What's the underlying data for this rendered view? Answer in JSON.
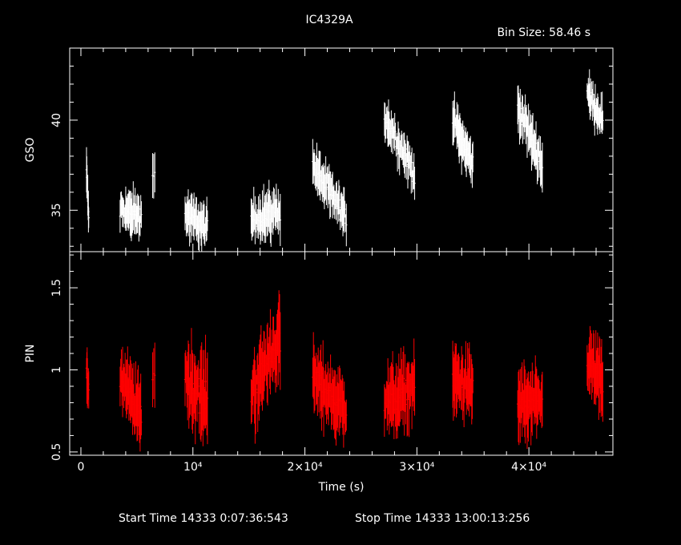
{
  "title": "IC4329A",
  "bin_size_label": "Bin Size: 58.46 s",
  "x_axis": {
    "label": "Time (s)",
    "ticks": [
      "0",
      "10⁴",
      "2×10⁴",
      "3×10⁴",
      "4×10⁴"
    ]
  },
  "footer": {
    "start_label": "Start Time 14333  0:07:36:543",
    "stop_label": "Stop Time 14333 13:00:13:256"
  },
  "colors": {
    "background": "#000000",
    "gso": "#ffffff",
    "pin": "#ff0000",
    "axes": "#ffffff"
  },
  "chart_data": [
    {
      "type": "scatter",
      "panel": "top",
      "ylabel": "GSO",
      "color": "#ffffff",
      "xlim": [
        -1000,
        47500
      ],
      "ylim": [
        32.7,
        44.0
      ],
      "y_ticks": [
        "35",
        "40"
      ],
      "segments": [
        {
          "x0": 500,
          "x1": 700,
          "y0": 37.2,
          "y1": 34.5,
          "n": 8,
          "spread": 1.2
        },
        {
          "x0": 3500,
          "x1": 5400,
          "y0": 35.0,
          "y1": 34.7,
          "n": 35,
          "spread": 1.3
        },
        {
          "x0": 6400,
          "x1": 6600,
          "y0": 37.0,
          "y1": 37.2,
          "n": 3,
          "spread": 1.2
        },
        {
          "x0": 9300,
          "x1": 11300,
          "y0": 34.8,
          "y1": 34.0,
          "n": 36,
          "spread": 1.3
        },
        {
          "x0": 15200,
          "x1": 17800,
          "y0": 34.5,
          "y1": 35.0,
          "n": 45,
          "spread": 1.4
        },
        {
          "x0": 20700,
          "x1": 23700,
          "y0": 37.5,
          "y1": 34.5,
          "n": 50,
          "spread": 1.3
        },
        {
          "x0": 27100,
          "x1": 29800,
          "y0": 40.2,
          "y1": 37.0,
          "n": 45,
          "spread": 1.3
        },
        {
          "x0": 33200,
          "x1": 35000,
          "y0": 40.0,
          "y1": 37.5,
          "n": 35,
          "spread": 1.3
        },
        {
          "x0": 39000,
          "x1": 41200,
          "y0": 40.8,
          "y1": 37.5,
          "n": 40,
          "spread": 1.4
        },
        {
          "x0": 45200,
          "x1": 46600,
          "y0": 41.5,
          "y1": 40.0,
          "n": 28,
          "spread": 1.2
        }
      ]
    },
    {
      "type": "scatter",
      "panel": "bottom",
      "ylabel": "PIN",
      "xlabel": "Time (s)",
      "color": "#ff0000",
      "xlim": [
        -1000,
        47500
      ],
      "ylim": [
        0.48,
        1.72
      ],
      "y_ticks": [
        "0.5",
        "1",
        "1.5"
      ],
      "segments": [
        {
          "x0": 500,
          "x1": 700,
          "y0": 0.95,
          "y1": 0.9,
          "n": 8,
          "spread": 0.15
        },
        {
          "x0": 3500,
          "x1": 5400,
          "y0": 0.95,
          "y1": 0.72,
          "n": 35,
          "spread": 0.22
        },
        {
          "x0": 6400,
          "x1": 6600,
          "y0": 1.0,
          "y1": 1.0,
          "n": 3,
          "spread": 0.2
        },
        {
          "x0": 9300,
          "x1": 11300,
          "y0": 0.95,
          "y1": 0.8,
          "n": 36,
          "spread": 0.28
        },
        {
          "x0": 15200,
          "x1": 17800,
          "y0": 0.85,
          "y1": 1.2,
          "n": 45,
          "spread": 0.25
        },
        {
          "x0": 20700,
          "x1": 23700,
          "y0": 0.95,
          "y1": 0.75,
          "n": 50,
          "spread": 0.22
        },
        {
          "x0": 27100,
          "x1": 29800,
          "y0": 0.8,
          "y1": 0.9,
          "n": 45,
          "spread": 0.22
        },
        {
          "x0": 33200,
          "x1": 35000,
          "y0": 0.95,
          "y1": 0.88,
          "n": 35,
          "spread": 0.22
        },
        {
          "x0": 39000,
          "x1": 41200,
          "y0": 0.8,
          "y1": 0.78,
          "n": 40,
          "spread": 0.22
        },
        {
          "x0": 45200,
          "x1": 46600,
          "y0": 1.05,
          "y1": 0.92,
          "n": 28,
          "spread": 0.22
        }
      ]
    }
  ]
}
